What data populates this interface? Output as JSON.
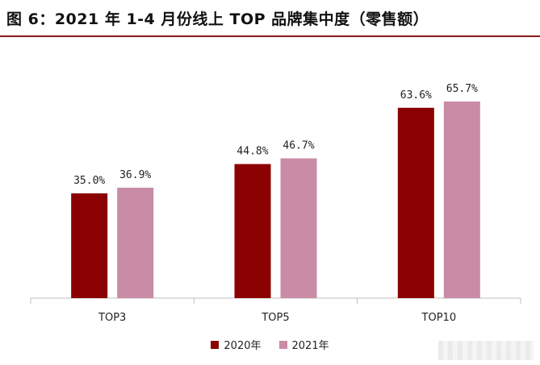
{
  "title": "图 6：2021 年 1-4 月份线上 TOP 品牌集中度（零售额）",
  "colors": {
    "series_2020": "#8b0000",
    "series_2021": "#c98ca6",
    "axis": "#bfbfbf",
    "title_rule": "#8b1a1a"
  },
  "legend": [
    {
      "label": "2020年",
      "color": "#8b0000"
    },
    {
      "label": "2021年",
      "color": "#c98ca6"
    }
  ],
  "chart_data": {
    "type": "bar",
    "categories": [
      "TOP3",
      "TOP5",
      "TOP10"
    ],
    "series": [
      {
        "name": "2020年",
        "values": [
          35.0,
          44.8,
          63.6
        ],
        "labels": [
          "35.0%",
          "44.8%",
          "63.6%"
        ]
      },
      {
        "name": "2021年",
        "values": [
          36.9,
          46.7,
          65.7
        ],
        "labels": [
          "36.9%",
          "46.7%",
          "65.7%"
        ]
      }
    ],
    "title": "图 6：2021 年 1-4 月份线上 TOP 品牌集中度（零售额）",
    "xlabel": "",
    "ylabel": "",
    "ylim": [
      0,
      70
    ],
    "grid": false,
    "legend_position": "bottom"
  }
}
